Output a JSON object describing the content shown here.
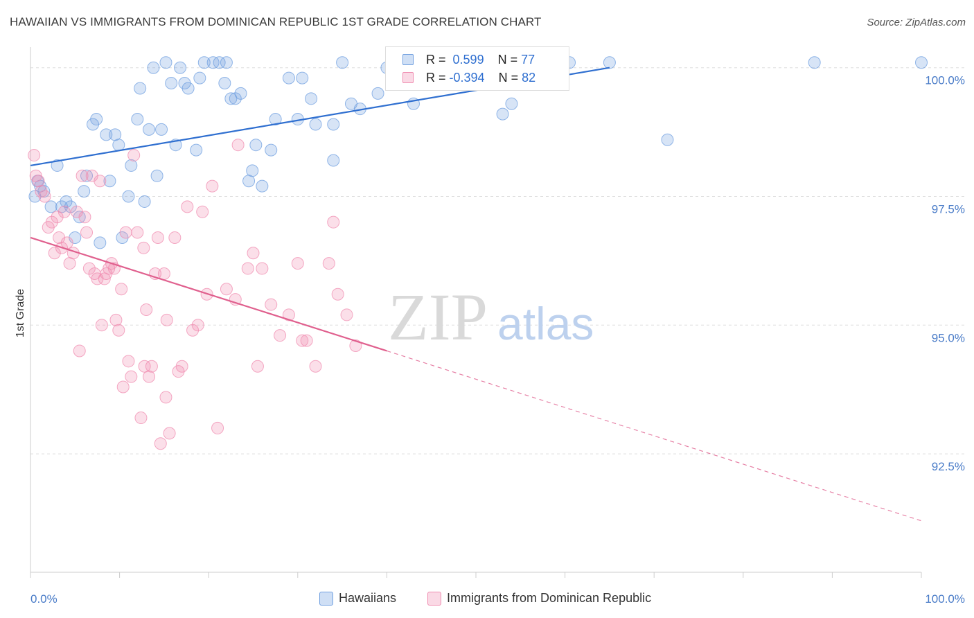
{
  "title": "HAWAIIAN VS IMMIGRANTS FROM DOMINICAN REPUBLIC 1ST GRADE CORRELATION CHART",
  "source": "Source: ZipAtlas.com",
  "watermark": {
    "zip": "ZIP",
    "atlas": "atlas"
  },
  "legend": {
    "rows": [
      {
        "r_label": "R =",
        "r_value": "0.599",
        "n_label": "N =",
        "n_value": "77",
        "color": "#6f9fe0"
      },
      {
        "r_label": "R =",
        "r_value": "-0.394",
        "n_label": "N =",
        "n_value": "82",
        "color": "#f08cb0"
      }
    ]
  },
  "bottom_legend": [
    {
      "label": "Hawaiians",
      "color": "#6f9fe0"
    },
    {
      "label": "Immigrants from Dominican Republic",
      "color": "#f08cb0"
    }
  ],
  "chart_data": {
    "type": "scatter",
    "title": "HAWAIIAN VS IMMIGRANTS FROM DOMINICAN REPUBLIC 1ST GRADE CORRELATION CHART",
    "xlabel": "",
    "ylabel": "1st Grade",
    "xlim": [
      0,
      100
    ],
    "ylim": [
      90.2,
      100.4
    ],
    "x_tick_labels": [
      "0.0%",
      "100.0%"
    ],
    "y_ticks": [
      92.5,
      95.0,
      97.5,
      100.0
    ],
    "y_tick_labels": [
      "92.5%",
      "95.0%",
      "97.5%",
      "100.0%"
    ],
    "grid": true,
    "series": [
      {
        "name": "Hawaiians",
        "color": "#6f9fe0",
        "line_color": "#2f6fd0",
        "trend": {
          "x": [
            0,
            65
          ],
          "y": [
            98.1,
            100.0
          ]
        },
        "points": [
          [
            0.5,
            97.5
          ],
          [
            0.8,
            97.8
          ],
          [
            1.1,
            97.7
          ],
          [
            1.5,
            97.6
          ],
          [
            2.3,
            97.3
          ],
          [
            3.0,
            98.1
          ],
          [
            3.5,
            97.3
          ],
          [
            4.0,
            97.4
          ],
          [
            4.5,
            97.3
          ],
          [
            5.0,
            96.7
          ],
          [
            5.5,
            97.1
          ],
          [
            6.0,
            97.6
          ],
          [
            6.3,
            97.9
          ],
          [
            7.0,
            98.9
          ],
          [
            7.4,
            99.0
          ],
          [
            7.8,
            96.6
          ],
          [
            8.5,
            98.7
          ],
          [
            8.9,
            97.8
          ],
          [
            9.5,
            98.7
          ],
          [
            9.9,
            98.5
          ],
          [
            10.3,
            96.7
          ],
          [
            11.0,
            97.5
          ],
          [
            11.3,
            98.1
          ],
          [
            12.0,
            99.0
          ],
          [
            12.3,
            99.6
          ],
          [
            12.8,
            97.4
          ],
          [
            13.3,
            98.8
          ],
          [
            13.8,
            100.0
          ],
          [
            14.2,
            97.9
          ],
          [
            14.7,
            98.8
          ],
          [
            15.2,
            100.1
          ],
          [
            15.8,
            99.7
          ],
          [
            16.3,
            98.5
          ],
          [
            16.8,
            100.0
          ],
          [
            17.3,
            99.7
          ],
          [
            17.7,
            99.6
          ],
          [
            18.6,
            98.4
          ],
          [
            19.0,
            99.8
          ],
          [
            19.5,
            100.1
          ],
          [
            20.5,
            100.1
          ],
          [
            21.2,
            100.1
          ],
          [
            21.8,
            99.7
          ],
          [
            22.0,
            100.1
          ],
          [
            22.5,
            99.4
          ],
          [
            23.0,
            99.4
          ],
          [
            23.6,
            99.5
          ],
          [
            24.5,
            97.8
          ],
          [
            24.9,
            98.0
          ],
          [
            25.3,
            98.5
          ],
          [
            26.0,
            97.7
          ],
          [
            27.0,
            98.4
          ],
          [
            27.5,
            99.0
          ],
          [
            29.0,
            99.8
          ],
          [
            30.0,
            99.0
          ],
          [
            30.5,
            99.8
          ],
          [
            31.5,
            99.4
          ],
          [
            32.0,
            98.9
          ],
          [
            34.0,
            98.9
          ],
          [
            35.0,
            100.1
          ],
          [
            36.0,
            99.3
          ],
          [
            37.0,
            99.2
          ],
          [
            39.0,
            99.5
          ],
          [
            40.0,
            100.0
          ],
          [
            43.0,
            99.3
          ],
          [
            45.0,
            99.8
          ],
          [
            48.0,
            100.1
          ],
          [
            49.0,
            100.0
          ],
          [
            52.0,
            100.0
          ],
          [
            53.0,
            99.1
          ],
          [
            54.0,
            99.3
          ],
          [
            60.5,
            100.1
          ],
          [
            65.0,
            100.1
          ],
          [
            71.5,
            98.6
          ],
          [
            88.0,
            100.1
          ],
          [
            100.0,
            100.1
          ],
          [
            46.5,
            99.7
          ],
          [
            34.0,
            98.2
          ]
        ]
      },
      {
        "name": "Immigrants from Dominican Republic",
        "color": "#f08cb0",
        "line_color": "#e0608e",
        "trend": {
          "x": [
            0,
            40
          ],
          "y": [
            96.7,
            94.5
          ]
        },
        "trend_dashed": {
          "x": [
            40,
            100
          ],
          "y": [
            94.5,
            91.2
          ]
        },
        "points": [
          [
            0.4,
            98.3
          ],
          [
            0.6,
            97.9
          ],
          [
            0.9,
            97.8
          ],
          [
            1.2,
            97.6
          ],
          [
            1.6,
            97.5
          ],
          [
            2.0,
            96.9
          ],
          [
            2.4,
            97.0
          ],
          [
            2.7,
            96.4
          ],
          [
            3.0,
            97.1
          ],
          [
            3.2,
            96.7
          ],
          [
            3.5,
            96.5
          ],
          [
            3.8,
            97.2
          ],
          [
            4.1,
            96.6
          ],
          [
            4.4,
            96.2
          ],
          [
            4.8,
            96.4
          ],
          [
            5.2,
            97.2
          ],
          [
            5.5,
            94.5
          ],
          [
            5.8,
            97.9
          ],
          [
            6.1,
            97.1
          ],
          [
            6.3,
            96.8
          ],
          [
            6.6,
            96.1
          ],
          [
            6.9,
            97.9
          ],
          [
            7.2,
            96.0
          ],
          [
            7.5,
            95.9
          ],
          [
            7.8,
            97.8
          ],
          [
            8.0,
            95.0
          ],
          [
            8.3,
            95.9
          ],
          [
            8.5,
            96.0
          ],
          [
            8.8,
            96.1
          ],
          [
            9.1,
            96.2
          ],
          [
            9.4,
            96.1
          ],
          [
            9.6,
            95.1
          ],
          [
            9.9,
            94.9
          ],
          [
            10.2,
            95.7
          ],
          [
            10.4,
            93.8
          ],
          [
            10.7,
            96.8
          ],
          [
            11.0,
            94.3
          ],
          [
            11.3,
            94.0
          ],
          [
            11.6,
            98.3
          ],
          [
            12.0,
            96.8
          ],
          [
            12.4,
            93.2
          ],
          [
            12.7,
            96.5
          ],
          [
            13.0,
            95.3
          ],
          [
            13.3,
            94.0
          ],
          [
            13.6,
            94.2
          ],
          [
            14.0,
            96.0
          ],
          [
            14.3,
            96.7
          ],
          [
            14.6,
            92.7
          ],
          [
            15.0,
            96.0
          ],
          [
            15.3,
            95.1
          ],
          [
            15.6,
            92.9
          ],
          [
            16.2,
            96.7
          ],
          [
            16.6,
            94.1
          ],
          [
            17.0,
            94.2
          ],
          [
            17.6,
            97.3
          ],
          [
            18.2,
            94.9
          ],
          [
            18.8,
            95.0
          ],
          [
            19.3,
            97.2
          ],
          [
            19.8,
            95.6
          ],
          [
            20.4,
            97.7
          ],
          [
            21.0,
            93.0
          ],
          [
            22.0,
            95.7
          ],
          [
            23.3,
            98.5
          ],
          [
            24.4,
            96.1
          ],
          [
            25.0,
            96.4
          ],
          [
            25.5,
            94.2
          ],
          [
            26.0,
            96.1
          ],
          [
            27.0,
            95.4
          ],
          [
            28.0,
            94.8
          ],
          [
            29.0,
            95.2
          ],
          [
            30.0,
            96.2
          ],
          [
            30.5,
            94.7
          ],
          [
            31.0,
            94.7
          ],
          [
            32.0,
            94.2
          ],
          [
            33.5,
            96.2
          ],
          [
            34.0,
            97.0
          ],
          [
            34.5,
            95.6
          ],
          [
            35.5,
            95.2
          ],
          [
            36.5,
            94.6
          ],
          [
            15.2,
            93.6
          ],
          [
            23.0,
            95.5
          ],
          [
            12.8,
            94.2
          ]
        ]
      }
    ]
  }
}
